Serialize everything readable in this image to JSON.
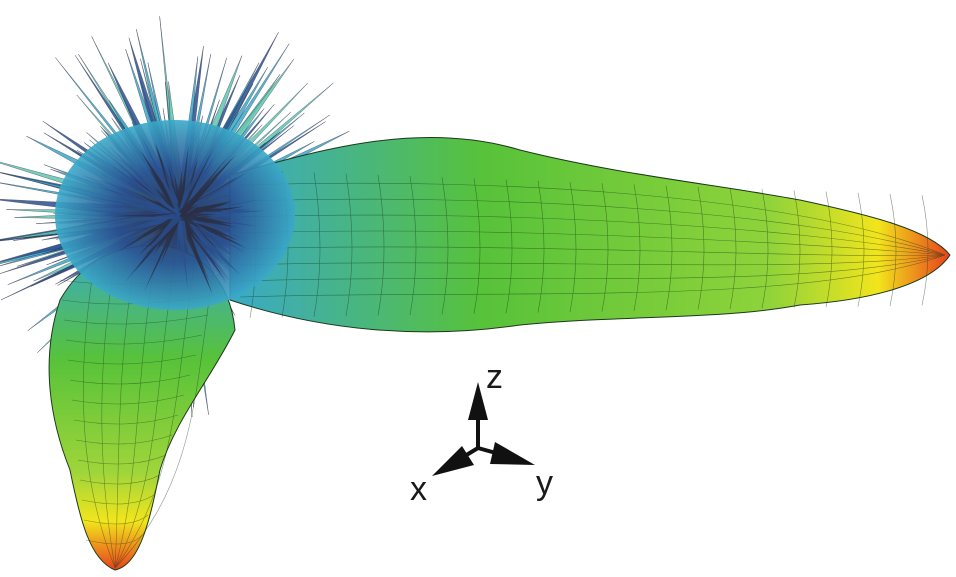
{
  "figure": {
    "colors": {
      "peak": "#e8401c",
      "high": "#f2e51c",
      "mid": "#57c23a",
      "low": "#3aa9c9",
      "deep": "#2a4f8f",
      "core": "#2b2f45",
      "mesh": "#1a3a1a"
    }
  },
  "axes": {
    "z_label": "z",
    "x_label": "x",
    "y_label": "y"
  }
}
